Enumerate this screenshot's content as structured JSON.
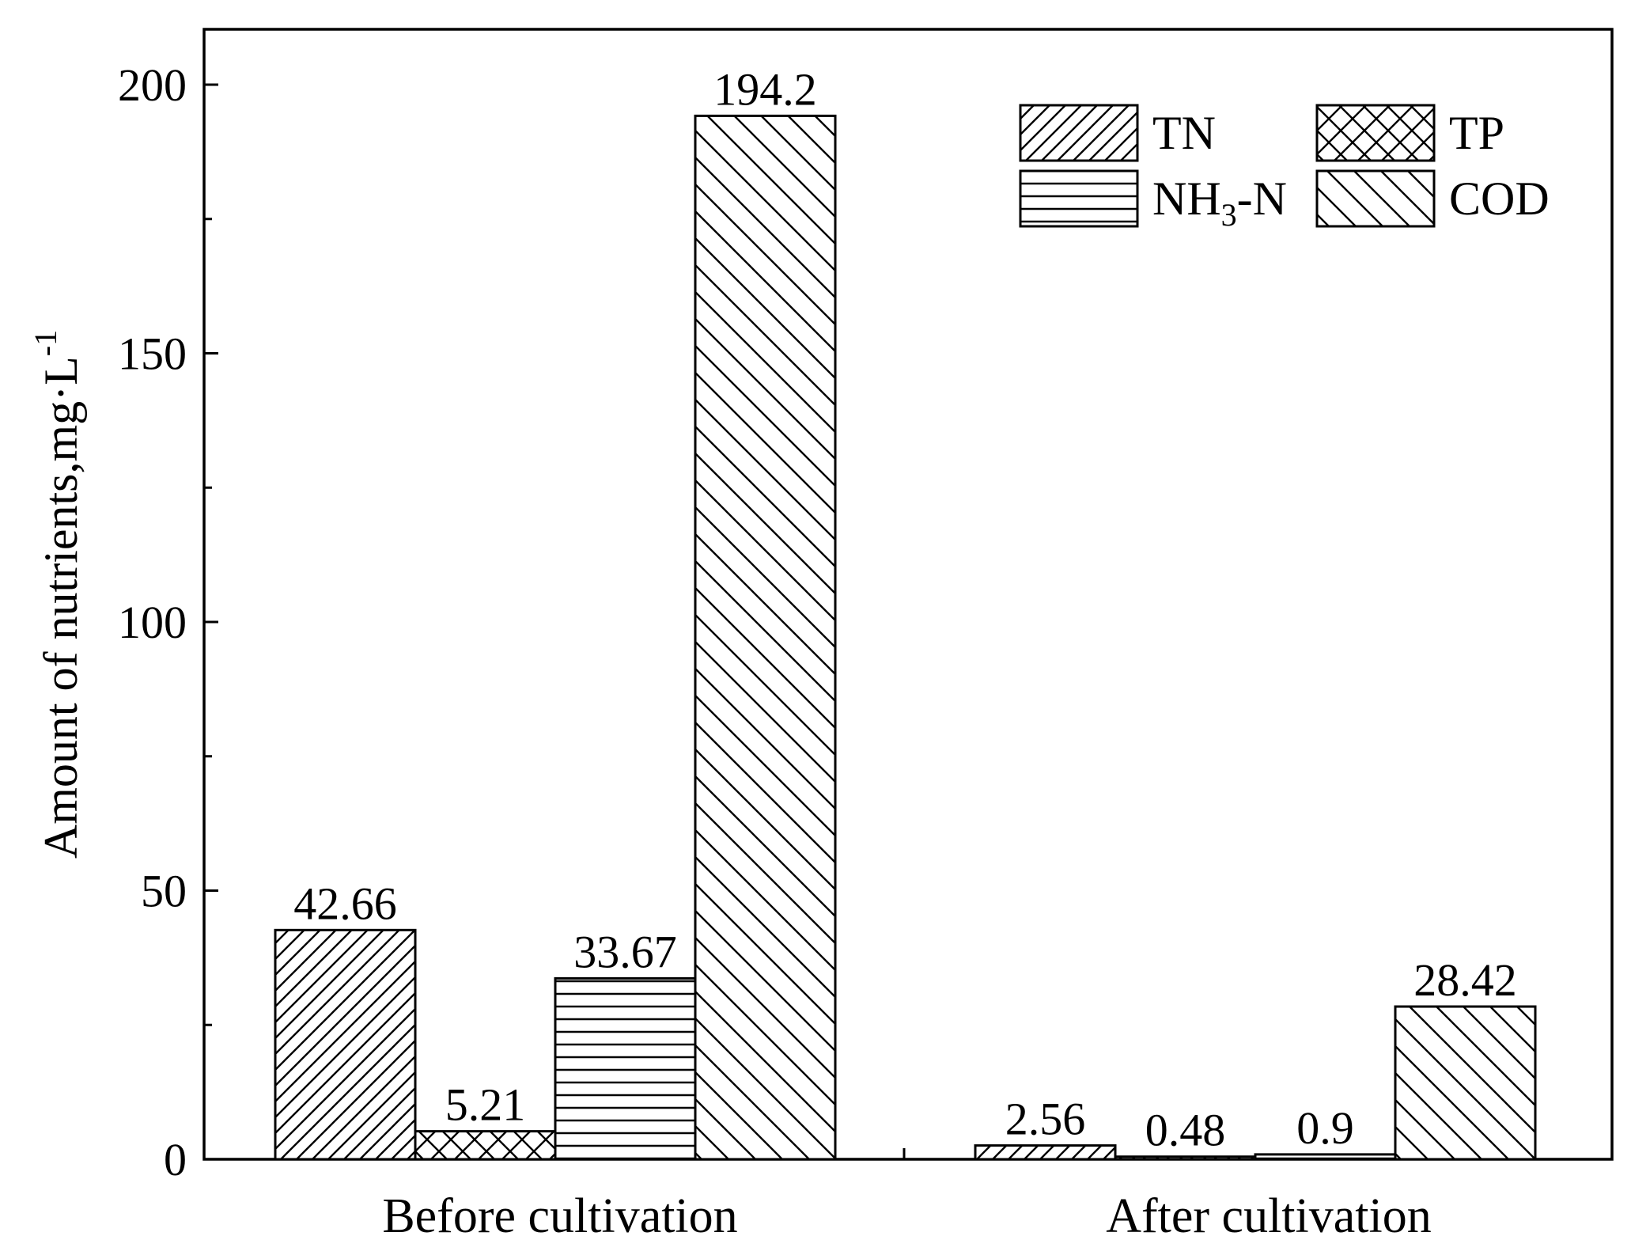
{
  "chart_data": {
    "type": "bar",
    "categories": [
      "Before cultivation",
      "After cultivation"
    ],
    "series": [
      {
        "name": "TN",
        "values": [
          42.66,
          2.56
        ],
        "pattern": "diag-fwd",
        "data_labels": [
          "42.66",
          "2.56"
        ]
      },
      {
        "name": "TP",
        "values": [
          5.21,
          0.48
        ],
        "pattern": "crosshatch",
        "data_labels": [
          "5.21",
          "0.48"
        ]
      },
      {
        "name": "NH3-N",
        "values": [
          33.67,
          0.9
        ],
        "pattern": "horizontal",
        "data_labels": [
          "33.67",
          "0.9"
        ]
      },
      {
        "name": "COD",
        "values": [
          194.2,
          28.42
        ],
        "pattern": "diag-back",
        "data_labels": [
          "194.2",
          "28.42"
        ]
      }
    ],
    "ylabel": "Amount of nutrients,mg·L",
    "ylabel_superscript": "-1",
    "ylim": [
      0,
      210
    ],
    "yticks": [
      0,
      50,
      100,
      150,
      200
    ],
    "ytick_labels": [
      "0",
      "50",
      "100",
      "150",
      "200"
    ],
    "legend": {
      "placement": "top-right",
      "entries": [
        {
          "base": "TN",
          "subscript": ""
        },
        {
          "base": "TP",
          "subscript": ""
        },
        {
          "base": "NH",
          "subscript": "3",
          "suffix": "-N"
        },
        {
          "base": "COD",
          "subscript": ""
        }
      ]
    },
    "grid": false,
    "colors": {
      "bar_fill": "#ffffff",
      "stroke": "#000000",
      "background": "#ffffff"
    }
  }
}
